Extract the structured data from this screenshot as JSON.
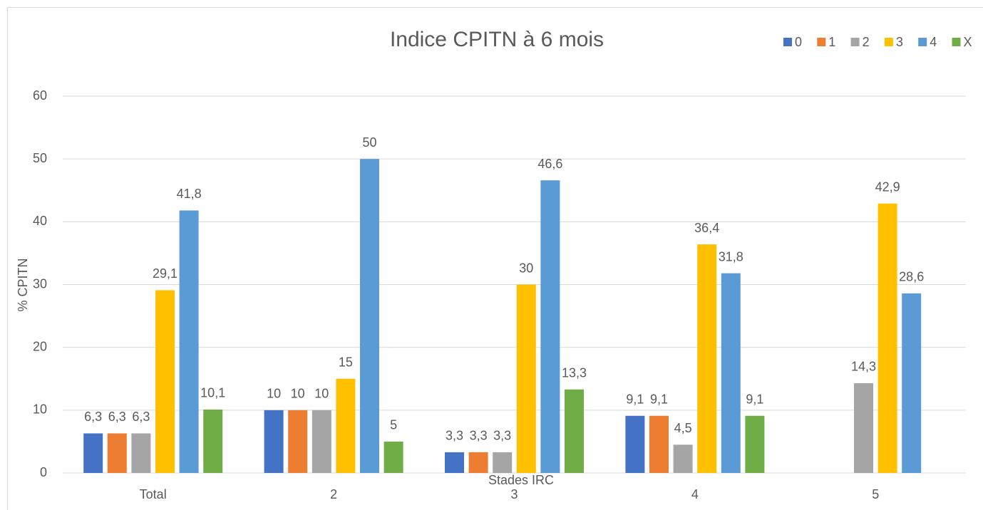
{
  "chart_data": {
    "type": "bar",
    "title": "Indice CPITN à 6 mois",
    "x_label": "Stades IRC",
    "y_label": "% CPITN",
    "categories": [
      "Total",
      "2",
      "3",
      "4",
      "5"
    ],
    "series": [
      {
        "name": "0",
        "color": "#4472c4",
        "values": [
          6.3,
          10,
          3.3,
          9.1,
          null
        ],
        "value_labels": [
          "6,3",
          "10",
          "3,3",
          "9,1",
          null
        ]
      },
      {
        "name": "1",
        "color": "#ed7d31",
        "values": [
          6.3,
          10,
          3.3,
          9.1,
          null
        ],
        "value_labels": [
          "6,3",
          "10",
          "3,3",
          "9,1",
          null
        ]
      },
      {
        "name": "2",
        "color": "#a5a5a5",
        "values": [
          6.3,
          10,
          3.3,
          4.5,
          14.3
        ],
        "value_labels": [
          "6,3",
          "10",
          "3,3",
          "4,5",
          "14,3"
        ]
      },
      {
        "name": "3",
        "color": "#ffc000",
        "values": [
          29.1,
          15,
          30,
          36.4,
          42.9
        ],
        "value_labels": [
          "29,1",
          "15",
          "30",
          "36,4",
          "42,9"
        ]
      },
      {
        "name": "4",
        "color": "#5b9bd5",
        "values": [
          41.8,
          50,
          46.6,
          31.8,
          28.6
        ],
        "value_labels": [
          "41,8",
          "50",
          "46,6",
          "31,8",
          "28,6"
        ]
      },
      {
        "name": "X",
        "color": "#70ad47",
        "values": [
          10.1,
          5,
          13.3,
          9.1,
          null
        ],
        "value_labels": [
          "10,1",
          "5",
          "13,3",
          "9,1",
          null
        ]
      }
    ],
    "ylim": [
      0,
      60
    ],
    "yticks": [
      0,
      10,
      20,
      30,
      40,
      50,
      60
    ],
    "grid": true,
    "legend": "top-right"
  }
}
